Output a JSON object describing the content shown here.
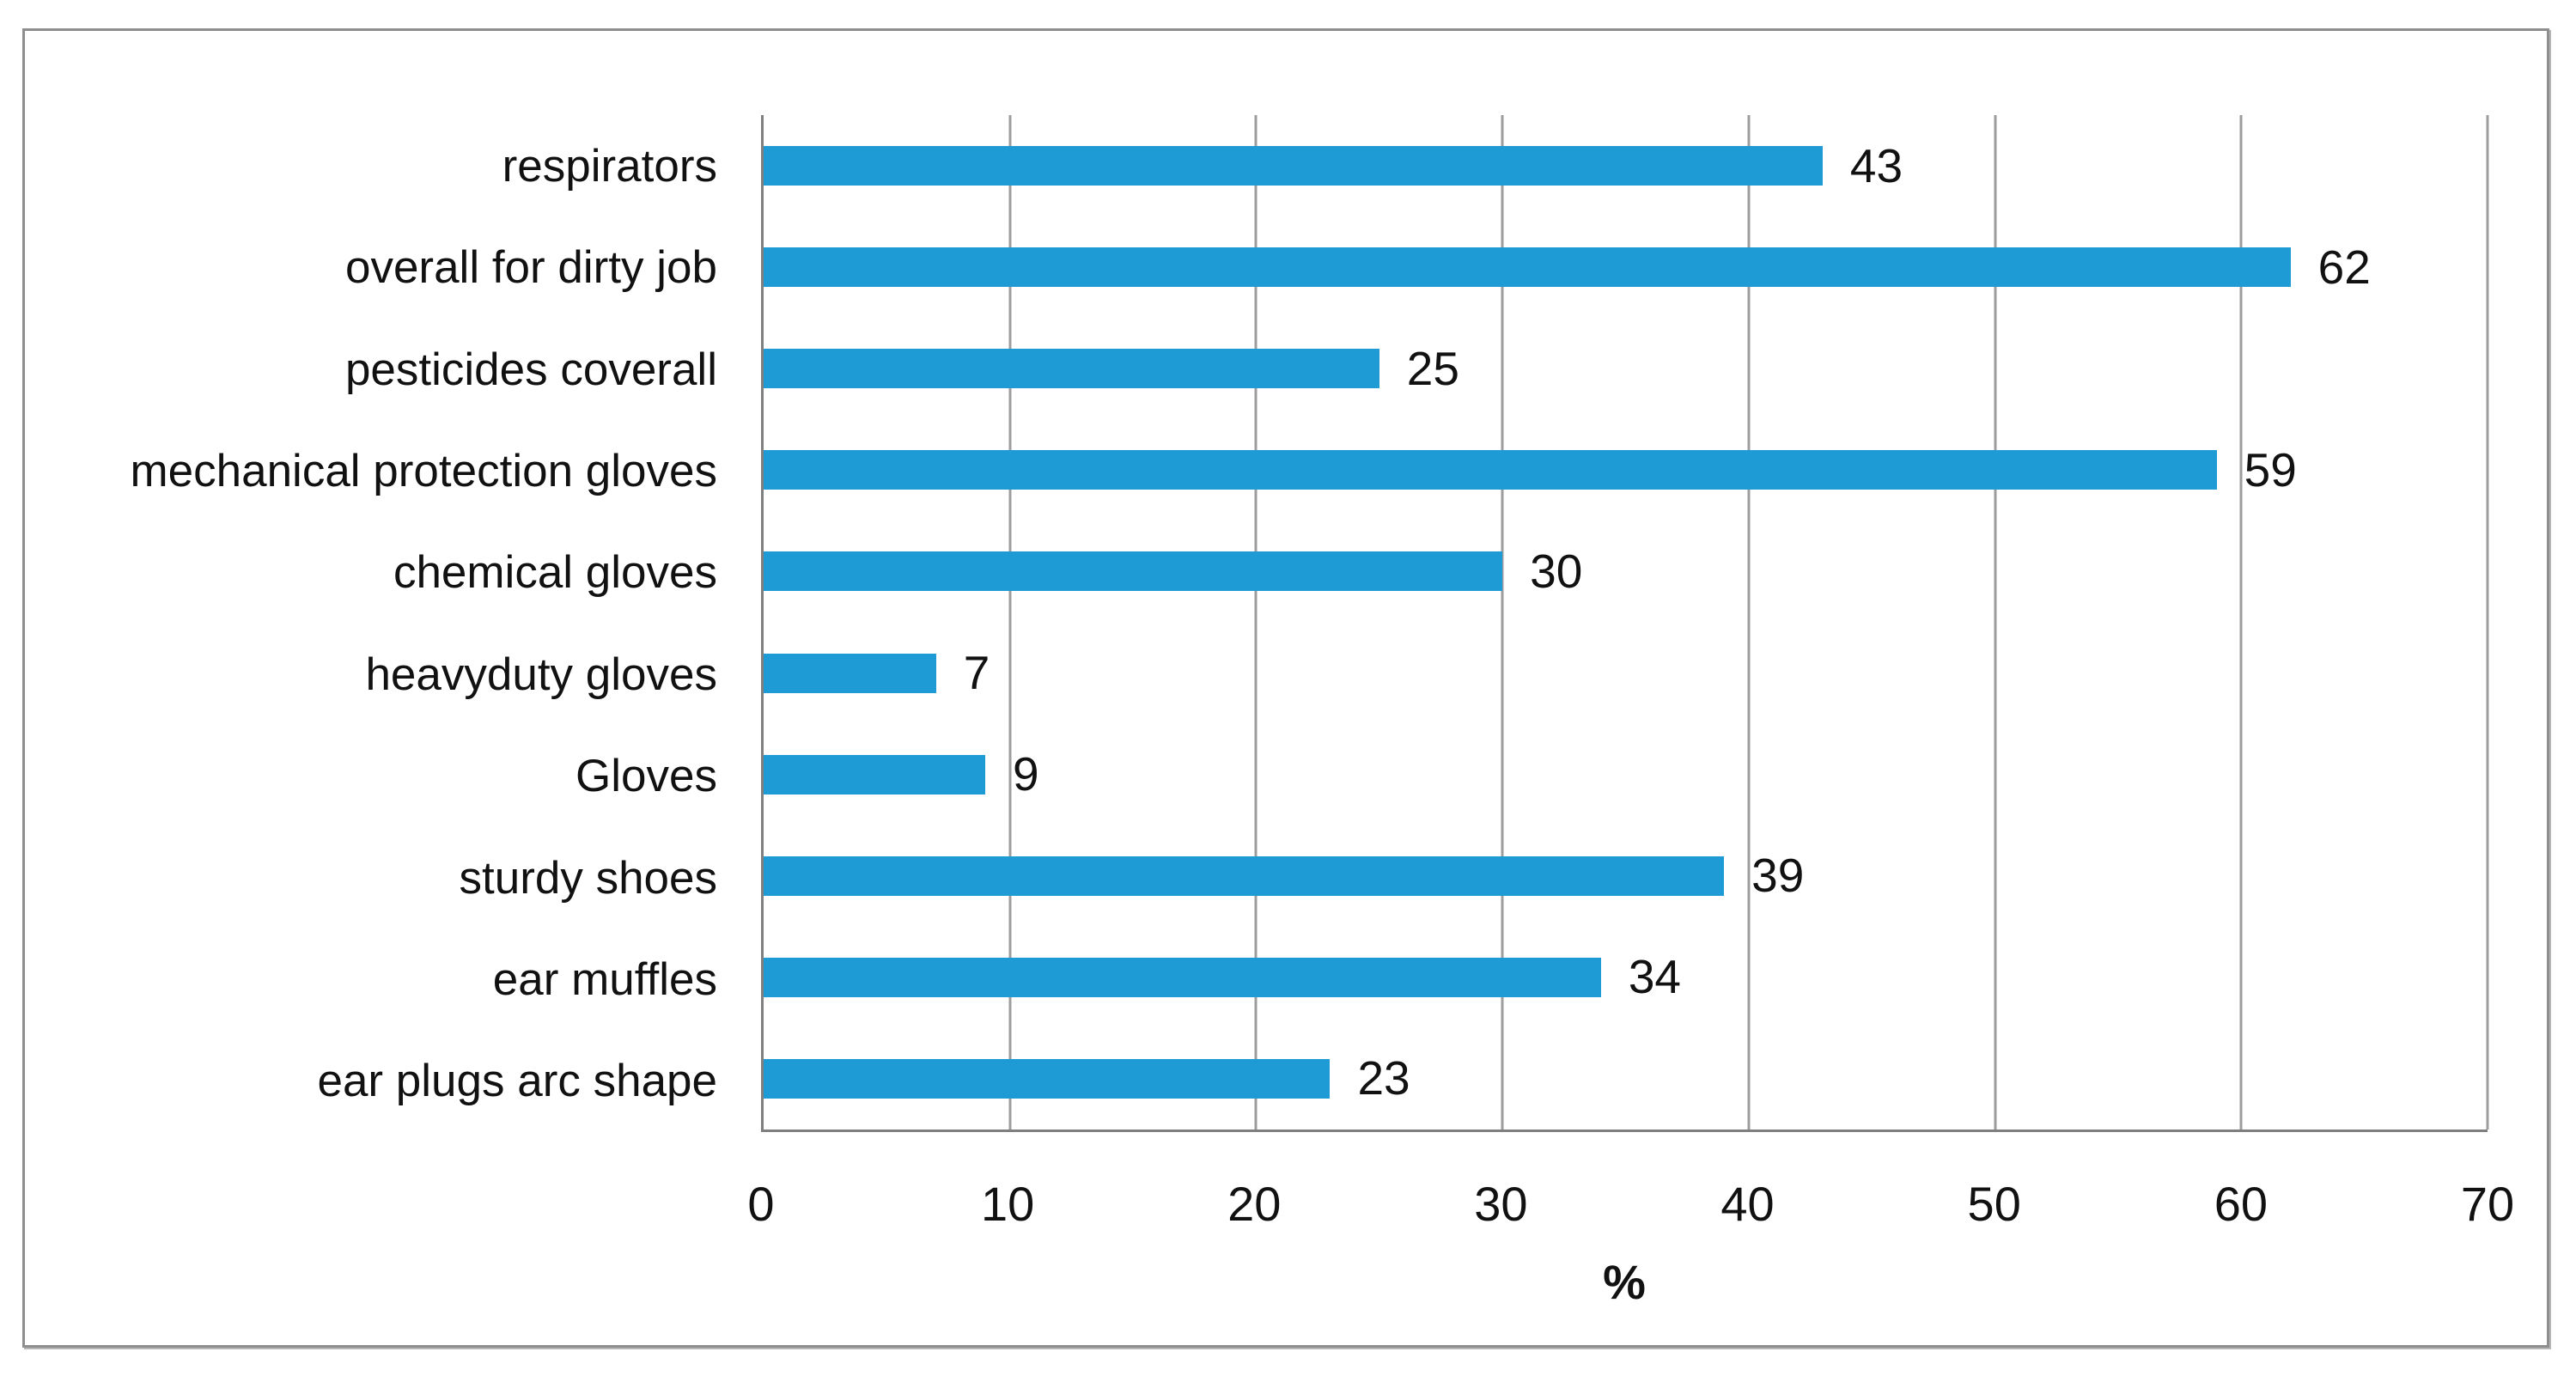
{
  "chart_data": {
    "type": "bar",
    "orientation": "horizontal",
    "title": "",
    "xlabel": "%",
    "ylabel": "",
    "categories": [
      "respirators",
      "overall for dirty job",
      "pesticides coverall",
      "mechanical protection gloves",
      "chemical gloves",
      "heavyduty gloves",
      "Gloves",
      "sturdy shoes",
      "ear muffles",
      "ear plugs arc shape"
    ],
    "values": [
      43,
      62,
      25,
      59,
      30,
      7,
      9,
      39,
      34,
      23
    ],
    "data_labels": [
      "43",
      "62",
      "25",
      "59",
      "30",
      "7",
      "9",
      "39",
      "34",
      "23"
    ],
    "xlim": [
      0,
      70
    ],
    "x_tick_step": 10,
    "x_ticks": [
      "0",
      "10",
      "20",
      "30",
      "40",
      "50",
      "60",
      "70"
    ],
    "grid": "vertical",
    "legend": "none",
    "colors": {
      "bar": "#1e9ad5",
      "gridline": "#9d9d9d",
      "axis": "#7f7f7f",
      "text": "#111111",
      "frame_border": "#8e8e8e",
      "background": "#ffffff"
    }
  }
}
